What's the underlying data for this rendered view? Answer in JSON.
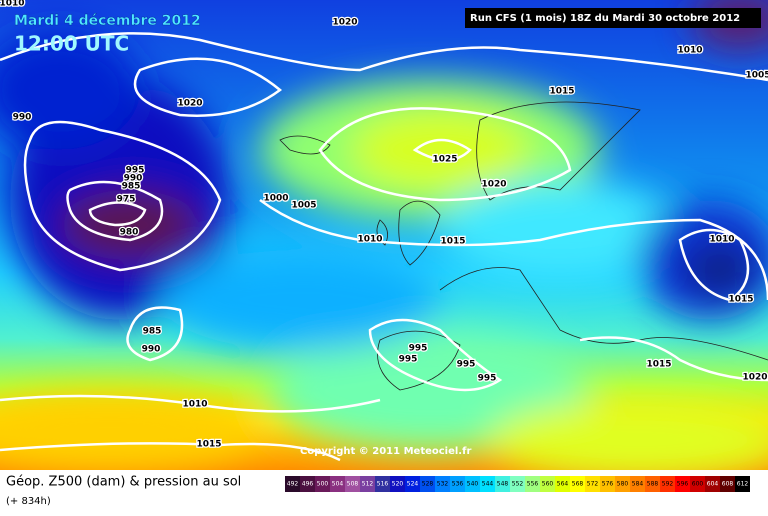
{
  "header": {
    "date": "Mardi 4 décembre 2012",
    "time": "12:00 UTC",
    "run": "Run CFS (1 mois) 18Z du Mardi 30 octobre 2012"
  },
  "map": {
    "copyright": "Copyright © 2011 Meteociel.fr",
    "isobar_labels": [
      1010,
      1020,
      1010,
      1005,
      990,
      1020,
      1015,
      995,
      990,
      985,
      975,
      980,
      1000,
      1005,
      1025,
      1020,
      1010,
      1015,
      1010,
      1015,
      985,
      990,
      995,
      995,
      995,
      995,
      1015,
      1020,
      1010,
      1015
    ]
  },
  "footer": {
    "title": "Géop. Z500 (dam) & pression au sol",
    "lead": "(+ 834h)"
  },
  "legend": [
    {
      "value": 492,
      "color": "#2a0a2a"
    },
    {
      "value": 496,
      "color": "#4b1040"
    },
    {
      "value": 500,
      "color": "#6a1a5a"
    },
    {
      "value": 504,
      "color": "#8a3080"
    },
    {
      "value": 508,
      "color": "#a050a0"
    },
    {
      "value": 512,
      "color": "#7a3fa0"
    },
    {
      "value": 516,
      "color": "#3030a0"
    },
    {
      "value": 520,
      "color": "#1010c0"
    },
    {
      "value": 524,
      "color": "#0020e0"
    },
    {
      "value": 528,
      "color": "#0050f0"
    },
    {
      "value": 532,
      "color": "#0080ff"
    },
    {
      "value": 536,
      "color": "#00a0ff"
    },
    {
      "value": 540,
      "color": "#00c0ff"
    },
    {
      "value": 544,
      "color": "#00e0ff"
    },
    {
      "value": 548,
      "color": "#40f0e0"
    },
    {
      "value": 552,
      "color": "#80ffc0"
    },
    {
      "value": 556,
      "color": "#a0ff80"
    },
    {
      "value": 560,
      "color": "#c0ff40"
    },
    {
      "value": 564,
      "color": "#e0ff00"
    },
    {
      "value": 568,
      "color": "#ffff00"
    },
    {
      "value": 572,
      "color": "#ffe000"
    },
    {
      "value": 576,
      "color": "#ffc000"
    },
    {
      "value": 580,
      "color": "#ffa000"
    },
    {
      "value": 584,
      "color": "#ff8000"
    },
    {
      "value": 588,
      "color": "#ff6000"
    },
    {
      "value": 592,
      "color": "#ff3000"
    },
    {
      "value": 596,
      "color": "#ff0000"
    },
    {
      "value": 600,
      "color": "#d00000"
    },
    {
      "value": 604,
      "color": "#a00000"
    },
    {
      "value": 608,
      "color": "#600000"
    },
    {
      "value": 612,
      "color": "#000000"
    }
  ]
}
